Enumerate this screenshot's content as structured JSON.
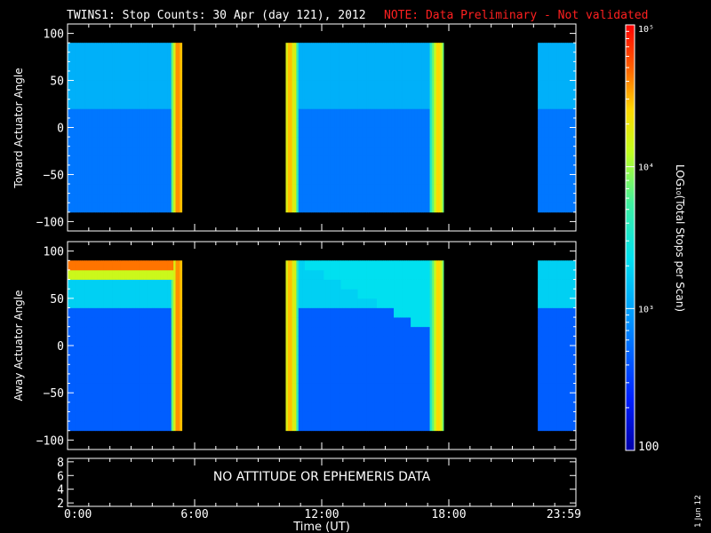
{
  "header": {
    "title": "TWINS1: Stop Counts: 30 Apr (day 121), 2012",
    "note": "NOTE: Data Preliminary - Not validated"
  },
  "chart_data": [
    {
      "type": "heatmap",
      "ylabel": "Toward Actuator Angle",
      "ylim": [
        -110,
        110
      ],
      "yticks": [
        "100",
        "50",
        "0",
        "−50",
        "−100"
      ],
      "ytick_values": [
        100,
        50,
        0,
        -50,
        -100
      ],
      "xlim_hours": [
        0,
        24
      ],
      "data_extent_angle": [
        -90,
        90
      ],
      "data_blocks_hours": [
        [
          0,
          5.4
        ],
        [
          10.3,
          17.75
        ],
        [
          22.2,
          24
        ]
      ],
      "bright_edges_hours": [
        5.2,
        10.5,
        17.5
      ]
    },
    {
      "type": "heatmap",
      "ylabel": "Away Actuator Angle",
      "ylim": [
        -110,
        110
      ],
      "yticks": [
        "100",
        "50",
        "0",
        "−50",
        "−100"
      ],
      "ytick_values": [
        100,
        50,
        0,
        -50,
        -100
      ],
      "xlim_hours": [
        0,
        24
      ],
      "data_extent_angle": [
        -90,
        90
      ],
      "data_blocks_hours": [
        [
          0,
          5.4
        ],
        [
          10.3,
          17.75
        ],
        [
          22.2,
          24
        ]
      ],
      "bright_edges_hours": [
        5.2,
        10.5,
        17.5
      ]
    },
    {
      "type": "line",
      "ylim": [
        1.5,
        8.5
      ],
      "yticks": [
        "8",
        "6",
        "4",
        "2"
      ],
      "ytick_values": [
        8,
        6,
        4,
        2
      ],
      "message": "NO ATTITUDE OR EPHEMERIS DATA"
    }
  ],
  "xaxis": {
    "label": "Time (UT)",
    "ticks": [
      "0:00",
      "6:00",
      "12:00",
      "18:00",
      "23:59"
    ],
    "tick_hours": [
      0,
      6,
      12,
      18,
      24
    ]
  },
  "colorbar": {
    "label": "LOG₁₀(Total Stops per Scan)",
    "ticks": [
      "10⁵",
      "10⁴",
      "10³",
      "100"
    ],
    "tick_values": [
      100000,
      10000,
      1000,
      100
    ],
    "range": [
      100,
      100000
    ],
    "scale": "log"
  },
  "side_date": "1 Jun 12"
}
